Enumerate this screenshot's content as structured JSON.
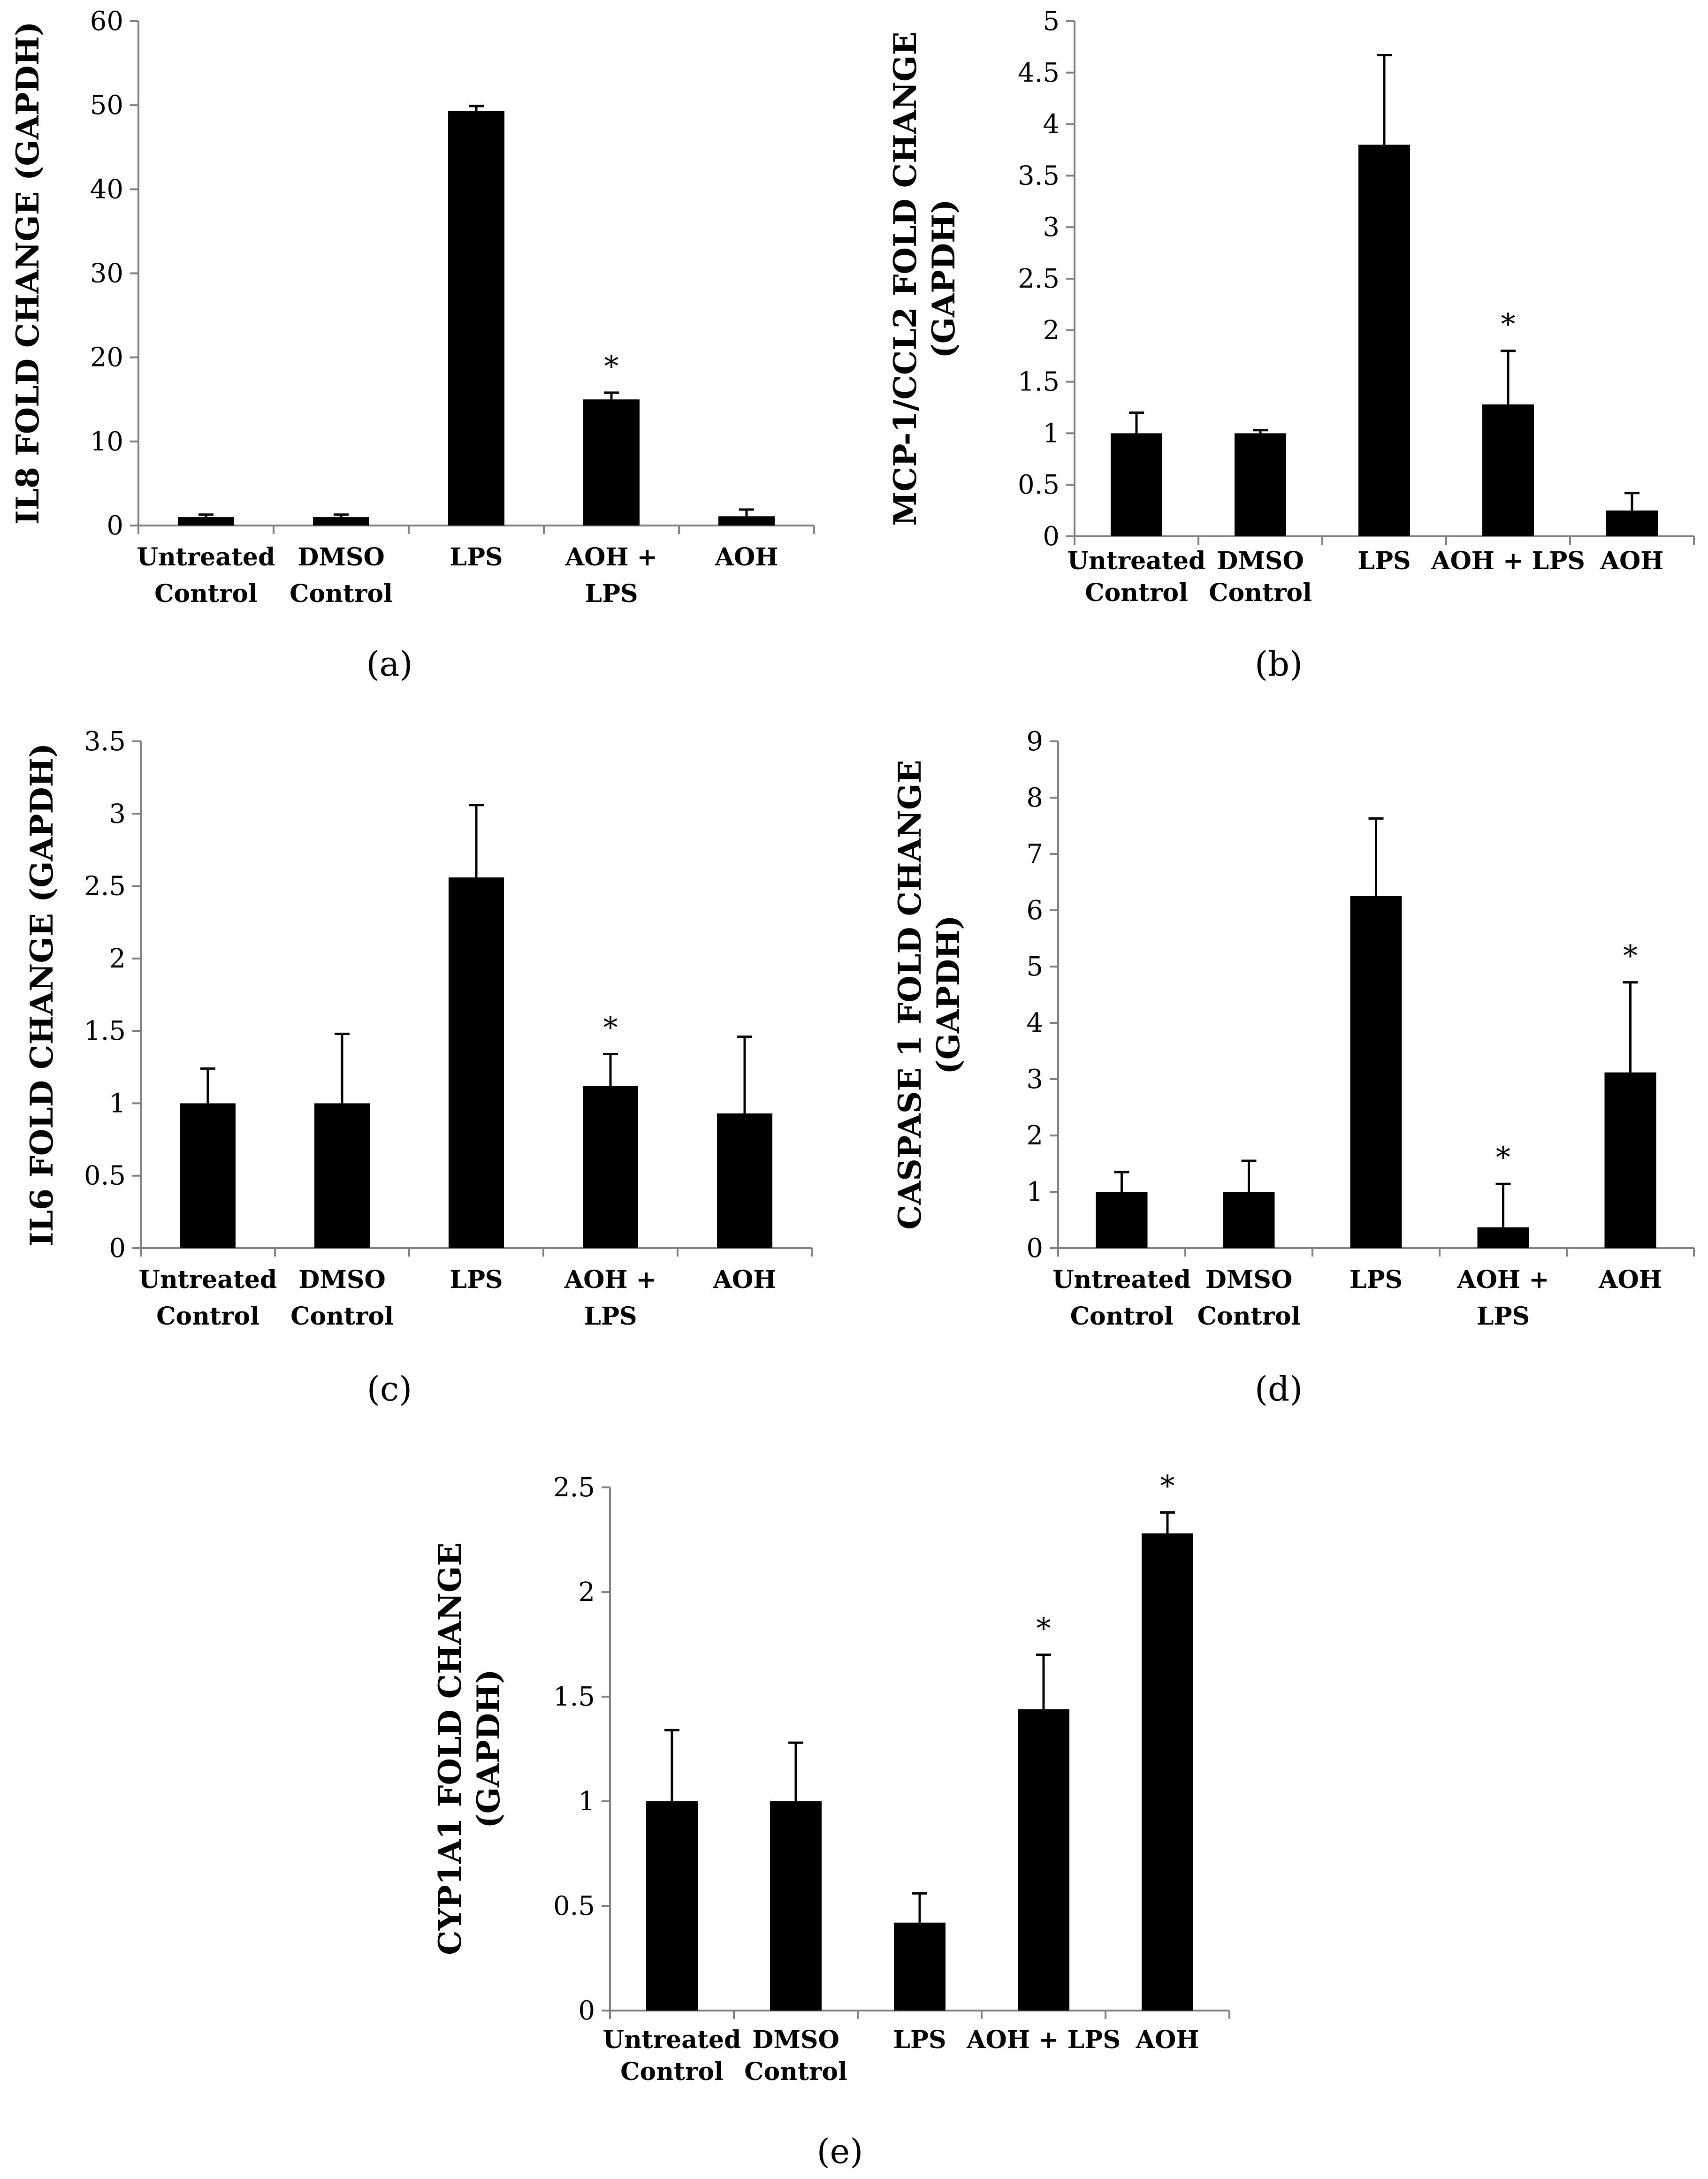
{
  "figure": {
    "captions": [
      "(a)",
      "(b)",
      "(c)",
      "(d)",
      "(e)"
    ]
  },
  "colors": {
    "bar": "#000000",
    "axis": "#808080",
    "text": "#000000"
  },
  "chart_data": [
    {
      "type": "bar",
      "panel": "a",
      "caption": "(a)",
      "ylabel": "IL8 FOLD CHANGE (GAPDH)",
      "ylabel_lines": [
        "IL8 FOLD CHANGE (GAPDH)"
      ],
      "ylim": [
        0,
        60
      ],
      "yticks": [
        0,
        10,
        20,
        30,
        40,
        50,
        60
      ],
      "tick_labels": [
        "0",
        "10",
        "20",
        "30",
        "40",
        "50",
        "60"
      ],
      "categories": [
        [
          "Untreated",
          "Control"
        ],
        [
          "DMSO",
          "Control"
        ],
        [
          "LPS"
        ],
        [
          "AOH +",
          "LPS"
        ],
        [
          "AOH"
        ]
      ],
      "values": [
        1.0,
        1.0,
        49.3,
        15.0,
        1.1
      ],
      "errors": [
        0.3,
        0.3,
        0.6,
        0.8,
        0.8
      ],
      "significant": [
        false,
        false,
        false,
        true,
        false
      ]
    },
    {
      "type": "bar",
      "panel": "b",
      "caption": "(b)",
      "ylabel": "MCP-1/CCL2 FOLD CHANGE (GAPDH)",
      "ylabel_lines": [
        "MCP-1/CCL2 FOLD CHANGE",
        "(GAPDH)"
      ],
      "ylim": [
        0,
        5
      ],
      "yticks": [
        0,
        0.5,
        1,
        1.5,
        2,
        2.5,
        3,
        3.5,
        4,
        4.5,
        5
      ],
      "tick_labels": [
        "0",
        "0.5",
        "1",
        "1.5",
        "2",
        "2.5",
        "3",
        "3.5",
        "4",
        "4.5",
        "5"
      ],
      "categories": [
        [
          "Untreated",
          "Control"
        ],
        [
          "DMSO",
          "Control"
        ],
        [
          "LPS"
        ],
        [
          "AOH + LPS"
        ],
        [
          "AOH"
        ]
      ],
      "values": [
        1.0,
        1.0,
        3.8,
        1.28,
        0.25
      ],
      "errors": [
        0.2,
        0.03,
        0.87,
        0.52,
        0.17
      ],
      "significant": [
        false,
        false,
        false,
        true,
        false
      ]
    },
    {
      "type": "bar",
      "panel": "c",
      "caption": "(c)",
      "ylabel": "IL6 FOLD CHANGE (GAPDH)",
      "ylabel_lines": [
        "IL6 FOLD CHANGE (GAPDH)"
      ],
      "ylim": [
        0,
        3.5
      ],
      "yticks": [
        0,
        0.5,
        1,
        1.5,
        2,
        2.5,
        3,
        3.5
      ],
      "tick_labels": [
        "0",
        "0.5",
        "1",
        "1.5",
        "2",
        "2.5",
        "3",
        "3.5"
      ],
      "categories": [
        [
          "Untreated",
          "Control"
        ],
        [
          "DMSO",
          "Control"
        ],
        [
          "LPS"
        ],
        [
          "AOH +",
          "LPS"
        ],
        [
          "AOH"
        ]
      ],
      "values": [
        1.0,
        1.0,
        2.56,
        1.12,
        0.93
      ],
      "errors": [
        0.24,
        0.48,
        0.5,
        0.22,
        0.53
      ],
      "significant": [
        false,
        false,
        false,
        true,
        false
      ]
    },
    {
      "type": "bar",
      "panel": "d",
      "caption": "(d)",
      "ylabel": "CASPASE 1 FOLD CHANGE (GAPDH)",
      "ylabel_lines": [
        "CASPASE 1 FOLD CHANGE",
        "(GAPDH)"
      ],
      "ylim": [
        0,
        9
      ],
      "yticks": [
        0,
        1,
        2,
        3,
        4,
        5,
        6,
        7,
        8,
        9
      ],
      "tick_labels": [
        "0",
        "1",
        "2",
        "3",
        "4",
        "5",
        "6",
        "7",
        "8",
        "9"
      ],
      "categories": [
        [
          "Untreated",
          "Control"
        ],
        [
          "DMSO",
          "Control"
        ],
        [
          "LPS"
        ],
        [
          "AOH +",
          "LPS"
        ],
        [
          "AOH"
        ]
      ],
      "values": [
        1.0,
        1.0,
        6.25,
        0.37,
        3.12
      ],
      "errors": [
        0.35,
        0.55,
        1.38,
        0.77,
        1.6
      ],
      "significant": [
        false,
        false,
        false,
        true,
        true
      ]
    },
    {
      "type": "bar",
      "panel": "e",
      "caption": "(e)",
      "ylabel": "CYP1A1 FOLD CHANGE (GAPDH)",
      "ylabel_lines": [
        "CYP1A1 FOLD CHANGE",
        "(GAPDH)"
      ],
      "ylim": [
        0,
        2.5
      ],
      "yticks": [
        0,
        0.5,
        1,
        1.5,
        2,
        2.5
      ],
      "tick_labels": [
        "0",
        "0.5",
        "1",
        "1.5",
        "2",
        "2.5"
      ],
      "categories": [
        [
          "Untreated",
          "Control"
        ],
        [
          "DMSO",
          "Control"
        ],
        [
          "LPS"
        ],
        [
          "AOH + LPS"
        ],
        [
          "AOH"
        ]
      ],
      "values": [
        1.0,
        1.0,
        0.42,
        1.44,
        2.28
      ],
      "errors": [
        0.34,
        0.28,
        0.14,
        0.26,
        0.1
      ],
      "significant": [
        false,
        false,
        false,
        true,
        true
      ]
    }
  ]
}
